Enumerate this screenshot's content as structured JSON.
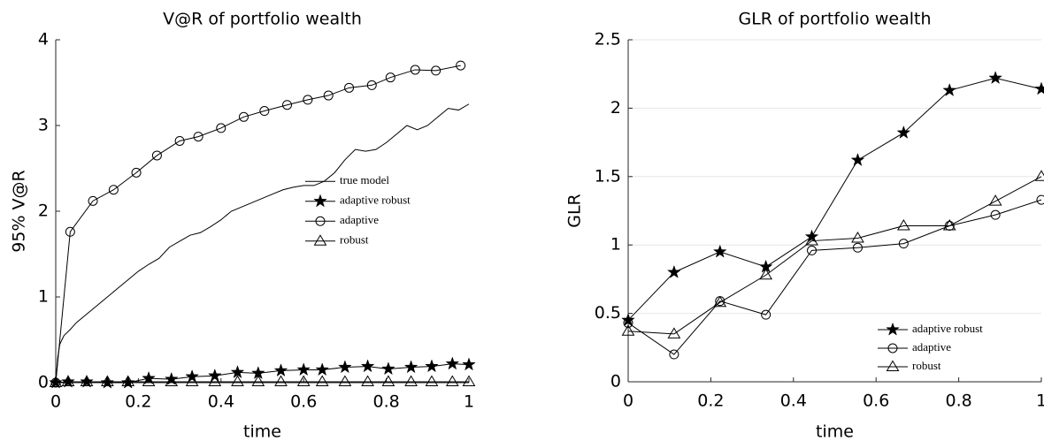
{
  "chart_data": [
    {
      "type": "line",
      "title": "V@R of portfolio wealth",
      "x_label": "time",
      "y_label": "95% V@R",
      "xlim": [
        0,
        1
      ],
      "ylim": [
        0,
        4
      ],
      "xticks": [
        0,
        0.2,
        0.4,
        0.6,
        0.8,
        1
      ],
      "yticks": [
        0,
        1,
        2,
        3,
        4
      ],
      "grid": false,
      "legend": "center right",
      "series": [
        {
          "name": "true model",
          "color": "#000000",
          "marker": "none",
          "x": [
            0,
            0.005,
            0.01,
            0.02,
            0.035,
            0.05,
            0.075,
            0.1,
            0.125,
            0.15,
            0.175,
            0.2,
            0.225,
            0.25,
            0.275,
            0.3,
            0.325,
            0.35,
            0.375,
            0.4,
            0.425,
            0.45,
            0.475,
            0.5,
            0.525,
            0.55,
            0.575,
            0.6,
            0.625,
            0.65,
            0.675,
            0.7,
            0.725,
            0.75,
            0.775,
            0.8,
            0.825,
            0.85,
            0.875,
            0.9,
            0.925,
            0.95,
            0.975,
            1
          ],
          "values": [
            0,
            0.3,
            0.45,
            0.55,
            0.62,
            0.7,
            0.8,
            0.9,
            1.0,
            1.1,
            1.2,
            1.3,
            1.38,
            1.45,
            1.58,
            1.65,
            1.72,
            1.75,
            1.82,
            1.9,
            2.0,
            2.05,
            2.1,
            2.15,
            2.2,
            2.25,
            2.28,
            2.3,
            2.3,
            2.35,
            2.45,
            2.6,
            2.72,
            2.7,
            2.72,
            2.8,
            2.9,
            3.0,
            2.95,
            3.0,
            3.1,
            3.2,
            3.18,
            3.25
          ]
        },
        {
          "name": "adaptive robust",
          "color": "#000000",
          "marker": "star",
          "x": [
            0,
            0.03,
            0.075,
            0.125,
            0.175,
            0.225,
            0.28,
            0.33,
            0.385,
            0.44,
            0.49,
            0.545,
            0.6,
            0.645,
            0.7,
            0.755,
            0.805,
            0.86,
            0.91,
            0.96,
            1
          ],
          "values": [
            0,
            0.01,
            0.01,
            0,
            0,
            0.05,
            0.04,
            0.07,
            0.08,
            0.12,
            0.11,
            0.14,
            0.15,
            0.15,
            0.18,
            0.19,
            0.16,
            0.18,
            0.19,
            0.22,
            0.21
          ]
        },
        {
          "name": "adaptive",
          "color": "#000000",
          "marker": "circle",
          "x": [
            0,
            0.035,
            0.09,
            0.14,
            0.195,
            0.245,
            0.3,
            0.345,
            0.4,
            0.455,
            0.505,
            0.56,
            0.61,
            0.66,
            0.71,
            0.765,
            0.81,
            0.87,
            0.92,
            0.98
          ],
          "values": [
            0,
            1.76,
            2.12,
            2.25,
            2.45,
            2.65,
            2.82,
            2.87,
            2.97,
            3.1,
            3.17,
            3.24,
            3.3,
            3.35,
            3.44,
            3.47,
            3.56,
            3.65,
            3.64,
            3.7
          ]
        },
        {
          "name": "robust",
          "color": "#000000",
          "marker": "triangle",
          "x": [
            0,
            0.03,
            0.075,
            0.125,
            0.175,
            0.225,
            0.28,
            0.33,
            0.385,
            0.44,
            0.49,
            0.545,
            0.6,
            0.645,
            0.7,
            0.755,
            0.805,
            0.86,
            0.91,
            0.96,
            1
          ],
          "values": [
            0,
            0.01,
            0.01,
            0.01,
            0.01,
            0.01,
            0.01,
            0.01,
            0.01,
            0.01,
            0.01,
            0.01,
            0.01,
            0.01,
            0.01,
            0.01,
            0.01,
            0.01,
            0.01,
            0.01,
            0.01
          ]
        }
      ]
    },
    {
      "type": "line",
      "title": "GLR of portfolio wealth",
      "x_label": "time",
      "y_label": "GLR",
      "xlim": [
        0,
        1
      ],
      "ylim": [
        0,
        2.5
      ],
      "xticks": [
        0,
        0.2,
        0.4,
        0.6,
        0.8,
        1
      ],
      "yticks": [
        0,
        0.5,
        1,
        1.5,
        2,
        2.5
      ],
      "grid": true,
      "legend": "lower right",
      "series": [
        {
          "name": "adaptive robust",
          "color": "#000000",
          "marker": "star",
          "x": [
            0,
            0.1111,
            0.2222,
            0.3333,
            0.4444,
            0.5556,
            0.6667,
            0.7778,
            0.8889,
            1
          ],
          "values": [
            0.45,
            0.8,
            0.95,
            0.84,
            1.06,
            1.62,
            1.82,
            2.13,
            2.22,
            2.14
          ]
        },
        {
          "name": "adaptive",
          "color": "#000000",
          "marker": "circle",
          "x": [
            0,
            0.1111,
            0.2222,
            0.3333,
            0.4444,
            0.5556,
            0.6667,
            0.7778,
            0.8889,
            1
          ],
          "values": [
            0.43,
            0.2,
            0.59,
            0.49,
            0.96,
            0.98,
            1.01,
            1.14,
            1.22,
            1.33
          ]
        },
        {
          "name": "robust",
          "color": "#000000",
          "marker": "triangle",
          "x": [
            0,
            0.1111,
            0.2222,
            0.3333,
            0.4444,
            0.5556,
            0.6667,
            0.7778,
            0.8889,
            1
          ],
          "values": [
            0.37,
            0.35,
            0.58,
            0.78,
            1.03,
            1.05,
            1.14,
            1.14,
            1.32,
            1.5
          ]
        }
      ]
    }
  ]
}
